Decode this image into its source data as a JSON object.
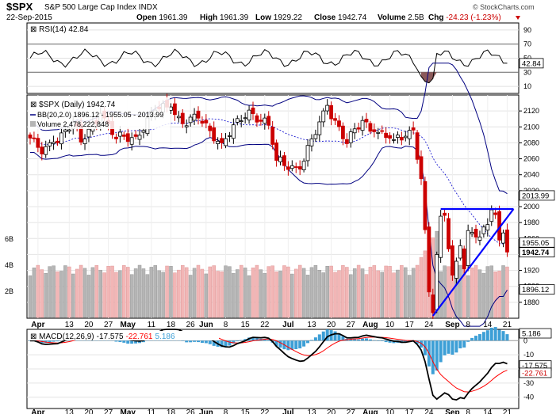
{
  "header": {
    "symbol": "$SPX",
    "name": "S&P 500 Large Cap Index INDX",
    "date": "22-Sep-2015",
    "watermark": "© StockCharts.com",
    "stats": [
      {
        "label": "Open",
        "value": "1961.39"
      },
      {
        "label": "High",
        "value": "1961.39"
      },
      {
        "label": "Low",
        "value": "1929.22"
      },
      {
        "label": "Close",
        "value": "1942.74"
      },
      {
        "label": "Volume",
        "value": "2.5B"
      },
      {
        "label": "Chg",
        "value": "-24.23 (-1.23%)"
      }
    ]
  },
  "rsi": {
    "title": "RSI(14) 42.84",
    "value_label": "42.84",
    "levels": [
      90,
      70,
      50,
      30,
      10
    ],
    "overbought": 70,
    "oversold": 30,
    "ylim": [
      0,
      100
    ]
  },
  "price": {
    "title": "$SPX (Daily) 1942.74",
    "bb_legend": "BB(20,2.0) 1896.12 - 1955.05 - 2013.99",
    "vol_legend": "Volume 2,478,222,848",
    "ticks": [
      2120,
      2100,
      2080,
      2060,
      2040,
      2020,
      2000,
      1980,
      1960,
      1940,
      1920,
      1900,
      1880
    ],
    "volume_ticks": [
      "6B",
      "4B",
      "2B"
    ],
    "ylim": [
      1860,
      2140
    ],
    "badges": [
      {
        "value": 2013.99,
        "label": "2013.99",
        "bold": false
      },
      {
        "value": 1955.05,
        "label": "1955.05",
        "bold": false
      },
      {
        "value": 1942.74,
        "label": "1942.74",
        "bold": true
      },
      {
        "value": 1896.12,
        "label": "1896.12",
        "bold": false
      }
    ],
    "trendlines": [
      {
        "from": [
          "Aug 25",
          1863
        ],
        "to": [
          "Sep 22",
          1997
        ]
      },
      {
        "from": [
          "Aug 27",
          1997
        ],
        "to": [
          "Sep 22",
          1997
        ]
      }
    ]
  },
  "macd": {
    "title": "MACD(12,26,9)",
    "macd_value": "-17.575",
    "signal_value": "-22.761",
    "hist_value": "5.186",
    "ticks": [
      0,
      -10,
      -20,
      -30,
      -40
    ],
    "ylim": [
      -48,
      8
    ],
    "badges": [
      {
        "value": 5.186,
        "label": "5.186",
        "color": "#ffffff"
      },
      {
        "value": -17.575,
        "label": "-17.575",
        "color": "#ffffff"
      },
      {
        "value": -22.761,
        "label": "-22.761",
        "color": "#ffffff"
      }
    ]
  },
  "x_axis": [
    {
      "label": "Apr",
      "i": 2
    },
    {
      "label": "13",
      "i": 10
    },
    {
      "label": "20",
      "i": 15
    },
    {
      "label": "27",
      "i": 20
    },
    {
      "label": "May",
      "i": 25
    },
    {
      "label": "11",
      "i": 31
    },
    {
      "label": "18",
      "i": 36
    },
    {
      "label": "26",
      "i": 41
    },
    {
      "label": "Jun",
      "i": 45
    },
    {
      "label": "8",
      "i": 50
    },
    {
      "label": "15",
      "i": 55
    },
    {
      "label": "22",
      "i": 60
    },
    {
      "label": "Jul",
      "i": 66
    },
    {
      "label": "13",
      "i": 72
    },
    {
      "label": "20",
      "i": 77
    },
    {
      "label": "27",
      "i": 82
    },
    {
      "label": "Aug",
      "i": 87
    },
    {
      "label": "10",
      "i": 92
    },
    {
      "label": "17",
      "i": 97
    },
    {
      "label": "24",
      "i": 102
    },
    {
      "label": "Sep",
      "i": 108
    },
    {
      "label": "8",
      "i": 112
    },
    {
      "label": "14",
      "i": 117
    },
    {
      "label": "21",
      "i": 122
    }
  ],
  "colors": {
    "up": "#000000",
    "down": "#cc0000",
    "bb": "#000080",
    "ma": "#0000cc",
    "trend": "#0000ff",
    "vol_up": "#b5b5b5",
    "vol_down": "#f2b6b6",
    "macd": "#000000",
    "signal": "#ff0000",
    "hist": "#3d9fd6"
  },
  "chart_data": {
    "type": "candlestick",
    "title": "$SPX (Daily) 1942.74",
    "anchors": [
      {
        "date": "Mar 30",
        "close": 2086
      },
      {
        "date": "Apr 2",
        "close": 2066
      },
      {
        "date": "Apr 8",
        "close": 2081
      },
      {
        "date": "Apr 15",
        "close": 2106
      },
      {
        "date": "Apr 17",
        "close": 2081
      },
      {
        "date": "Apr 24",
        "close": 2117
      },
      {
        "date": "Apr 30",
        "close": 2085
      },
      {
        "date": "May 7",
        "close": 2088
      },
      {
        "date": "May 14",
        "close": 2121
      },
      {
        "date": "May 20",
        "close": 2125
      },
      {
        "date": "May 26",
        "close": 2104
      },
      {
        "date": "Jun 1",
        "close": 2111
      },
      {
        "date": "Jun 9",
        "close": 2080
      },
      {
        "date": "Jun 18",
        "close": 2121
      },
      {
        "date": "Jun 25",
        "close": 2102
      },
      {
        "date": "Jun 29",
        "close": 2058
      },
      {
        "date": "Jul 8",
        "close": 2047
      },
      {
        "date": "Jul 17",
        "close": 2127
      },
      {
        "date": "Jul 24",
        "close": 2079
      },
      {
        "date": "Jul 30",
        "close": 2108
      },
      {
        "date": "Aug 4",
        "close": 2094
      },
      {
        "date": "Aug 11",
        "close": 2084
      },
      {
        "date": "Aug 18",
        "close": 2096
      },
      {
        "date": "Aug 20",
        "close": 2035
      },
      {
        "date": "Aug 21",
        "close": 1971
      },
      {
        "date": "Aug 24",
        "close": 1893
      },
      {
        "date": "Aug 25",
        "close": 1867
      },
      {
        "date": "Aug 26",
        "close": 1940
      },
      {
        "date": "Aug 27",
        "close": 1988
      },
      {
        "date": "Aug 28",
        "close": 1989
      },
      {
        "date": "Sep 1",
        "close": 1914
      },
      {
        "date": "Sep 3",
        "close": 1951
      },
      {
        "date": "Sep 4",
        "close": 1922
      },
      {
        "date": "Sep 8",
        "close": 1970
      },
      {
        "date": "Sep 11",
        "close": 1962
      },
      {
        "date": "Sep 16",
        "close": 1996
      },
      {
        "date": "Sep 17",
        "close": 1990
      },
      {
        "date": "Sep 18",
        "close": 1958
      },
      {
        "date": "Sep 21",
        "close": 1967
      },
      {
        "date": "Sep 22",
        "close": 1943
      }
    ],
    "bb_width": 36,
    "rsi_last": 42.84,
    "macd_last": -17.575,
    "signal_last": -22.761,
    "hist_last": 5.186,
    "ylim": [
      1860,
      2140
    ]
  }
}
